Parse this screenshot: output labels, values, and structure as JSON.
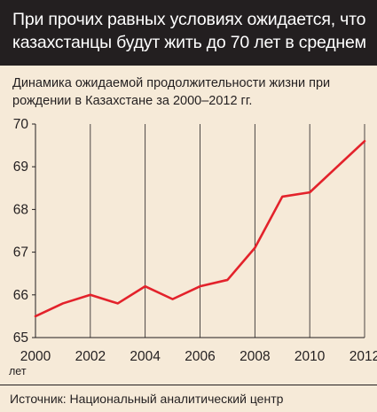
{
  "header": {
    "title_line1": "При прочих равных условиях ожидается, что",
    "title_line2": "казахстанцы будут жить до 70 лет в среднем"
  },
  "subtitle": {
    "line1": "Динамика ожидаемой продолжительности жизни при",
    "line2": "рождении в Казахстане за 2000–2012 гг."
  },
  "chart_data": {
    "type": "line",
    "x": [
      2000,
      2001,
      2002,
      2003,
      2004,
      2005,
      2006,
      2007,
      2008,
      2009,
      2010,
      2011,
      2012
    ],
    "series": [
      {
        "values": [
          65.5,
          65.8,
          66.0,
          65.8,
          66.2,
          65.9,
          66.2,
          66.35,
          67.1,
          68.3,
          68.4,
          69.0,
          69.6
        ]
      }
    ],
    "x_ticks": [
      "2000",
      "2002",
      "2004",
      "2006",
      "2008",
      "2010",
      "2012"
    ],
    "y_ticks": [
      "65",
      "66",
      "67",
      "68",
      "69",
      "70"
    ],
    "x_unit": "лет",
    "ylim": [
      65,
      70
    ],
    "xlim": [
      2000,
      2012
    ],
    "grid": "vertical",
    "line_color": "#e3222b"
  },
  "footer": {
    "source": "Источник: Национальный аналитический центр"
  }
}
